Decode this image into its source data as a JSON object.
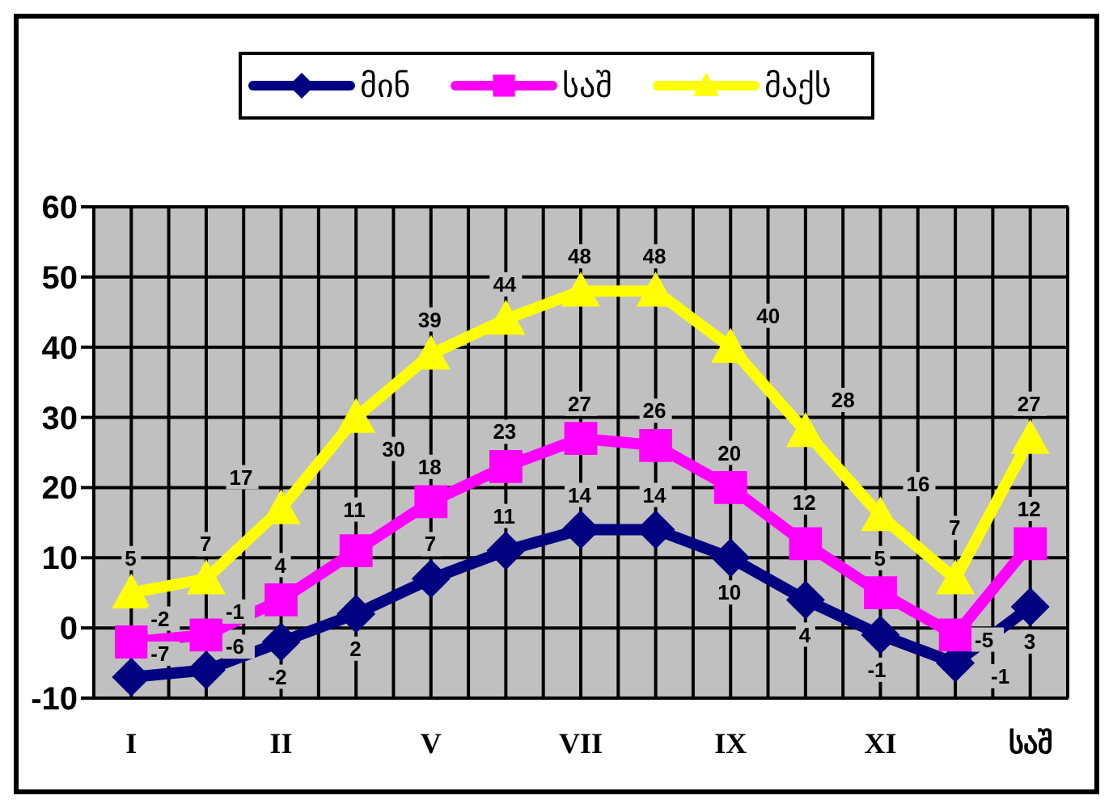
{
  "chart_data": {
    "type": "line",
    "categories": [
      "I",
      null,
      "II",
      null,
      "V",
      null,
      "VII",
      null,
      "IX",
      null,
      "XI",
      null,
      "საშ"
    ],
    "series": [
      {
        "name": "მინ",
        "color": "#000080",
        "marker": "diamond",
        "values": [
          -7,
          -6,
          -2,
          2,
          7,
          11,
          14,
          14,
          10,
          4,
          -1,
          -5,
          3
        ]
      },
      {
        "name": "საშ",
        "color": "#ff00ff",
        "marker": "square",
        "values": [
          -2,
          -1,
          4,
          11,
          18,
          23,
          27,
          26,
          20,
          12,
          5,
          -1,
          12
        ]
      },
      {
        "name": "მაქს",
        "color": "#ffff00",
        "marker": "triangle",
        "values": [
          5,
          7,
          17,
          30,
          39,
          44,
          48,
          48,
          40,
          28,
          16,
          7,
          27
        ]
      }
    ],
    "ylim": [
      -10,
      60
    ],
    "yticks": [
      -10,
      0,
      10,
      20,
      30,
      40,
      50,
      60
    ],
    "grid": true,
    "legend": "top",
    "data_labels": true
  }
}
